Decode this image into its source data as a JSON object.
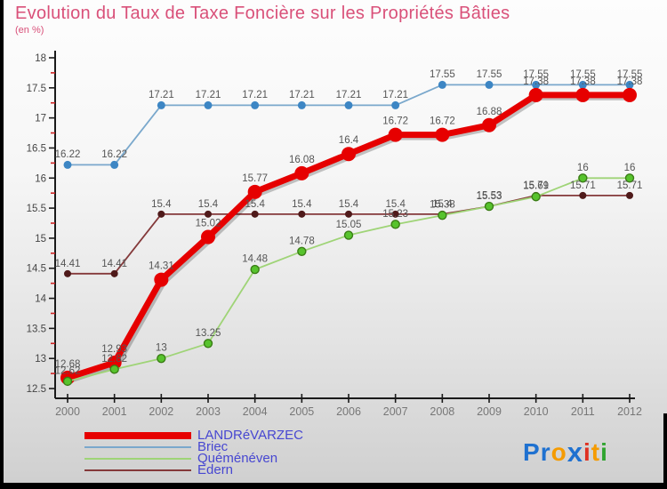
{
  "header": {
    "title": "Evolution du Taux de Taxe Foncière sur les Propriétés Bâties",
    "subtitle": "(en %)",
    "title_color": "#d95079"
  },
  "chart_data": {
    "type": "line",
    "x": [
      2000,
      2001,
      2002,
      2003,
      2004,
      2005,
      2006,
      2007,
      2008,
      2009,
      2010,
      2011,
      2012
    ],
    "ylim": [
      12.5,
      18
    ],
    "ytick_major": 0.5,
    "ytick_minor": 0.25,
    "grid": false,
    "value_labels_shown": true,
    "value_label_color": "#555555",
    "axis_color": "#1a1a1a",
    "axis_label_color": "#444444",
    "year_label_color": "#777777",
    "minor_tick_color": "#cc2222",
    "series": [
      {
        "name": "LANDRéVARZEC",
        "color": "#e60000",
        "marker_color": "#e60000",
        "line_width": 7,
        "marker_radius": 8,
        "values": [
          12.68,
          12.93,
          14.31,
          15.02,
          15.77,
          16.08,
          16.4,
          16.72,
          16.72,
          16.88,
          17.38,
          17.38,
          17.38
        ]
      },
      {
        "name": "Briec",
        "color": "#7aa8cc",
        "marker_color": "#3d86c4",
        "line_width": 1.8,
        "marker_radius": 4.5,
        "values": [
          16.22,
          16.22,
          17.21,
          17.21,
          17.21,
          17.21,
          17.21,
          17.21,
          17.55,
          17.55,
          17.55,
          17.55,
          17.55
        ]
      },
      {
        "name": "Quéménéven",
        "color": "#9fd477",
        "marker_color": "#57c32d",
        "marker_stroke": "#3a7d15",
        "line_width": 1.8,
        "marker_radius": 4.5,
        "values": [
          12.62,
          12.82,
          13,
          13.25,
          14.48,
          14.78,
          15.05,
          15.23,
          15.38,
          15.53,
          15.69,
          16,
          16
        ]
      },
      {
        "name": "Edern",
        "color": "#84393a",
        "marker_color": "#4f1a1a",
        "line_width": 1.8,
        "marker_radius": 4,
        "values": [
          14.41,
          14.41,
          15.4,
          15.4,
          15.4,
          15.4,
          15.4,
          15.4,
          15.4,
          15.53,
          15.71,
          15.71,
          15.71
        ]
      }
    ]
  },
  "legend": {
    "text_color": "#4747d1",
    "items": [
      {
        "label": "LANDRéVARZEC",
        "color": "#e60000",
        "thick": true
      },
      {
        "label": "Briec",
        "color": "#7aa8cc",
        "thick": false
      },
      {
        "label": "Quéménéven",
        "color": "#9fd477",
        "thick": false
      },
      {
        "label": "Edern",
        "color": "#84393a",
        "thick": false
      }
    ]
  },
  "logo": {
    "name": "proxiti",
    "letters": [
      {
        "ch": "P",
        "color": "#1f71d0"
      },
      {
        "ch": "r",
        "color": "#1f71d0"
      },
      {
        "ch": "o",
        "color": "#f59b00"
      },
      {
        "ch": "x",
        "color": "#1f71d0",
        "x": true
      },
      {
        "ch": "i",
        "color": "#e03020"
      },
      {
        "ch": "t",
        "color": "#f59b00"
      },
      {
        "ch": "i",
        "color": "#2fa42f"
      }
    ]
  }
}
